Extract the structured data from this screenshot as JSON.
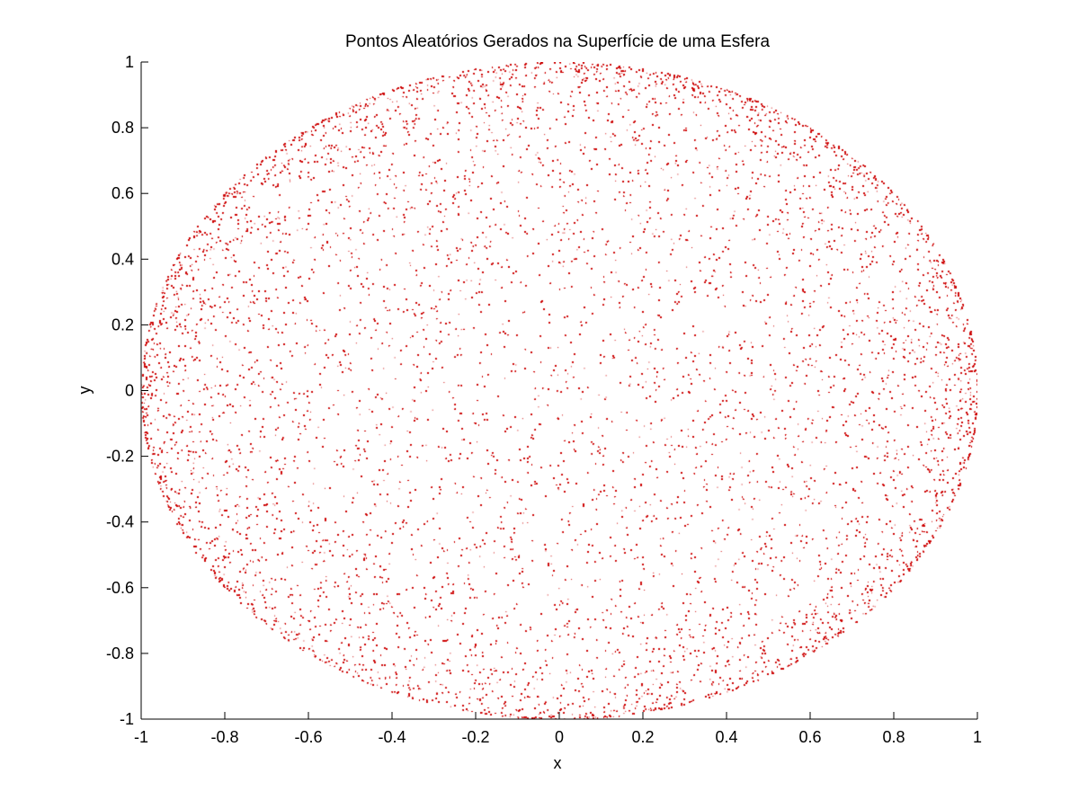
{
  "chart_data": {
    "type": "scatter",
    "title": "Pontos Aleatórios Gerados na Superfície de uma Esfera",
    "xlabel": "x",
    "ylabel": "y",
    "xlim": [
      -1,
      1
    ],
    "ylim": [
      -1,
      1
    ],
    "grid": false,
    "marker_color": "#cc0000",
    "distribution": "uniform points on unit sphere, projected onto x-y plane (denser near circle edge)",
    "x_ticks": [
      -1,
      -0.8,
      -0.6,
      -0.4,
      -0.2,
      0,
      0.2,
      0.4,
      0.6,
      0.8,
      1
    ],
    "x_tick_labels": [
      "-1",
      "-0.8",
      "-0.6",
      "-0.4",
      "-0.2",
      "0",
      "0.2",
      "0.4",
      "0.6",
      "0.8",
      "1"
    ],
    "y_ticks": [
      -1,
      -0.8,
      -0.6,
      -0.4,
      -0.2,
      0,
      0.2,
      0.4,
      0.6,
      0.8,
      1
    ],
    "y_tick_labels": [
      "-1",
      "-0.8",
      "-0.6",
      "-0.4",
      "-0.2",
      "0",
      "0.2",
      "0.4",
      "0.6",
      "0.8",
      "1"
    ]
  }
}
